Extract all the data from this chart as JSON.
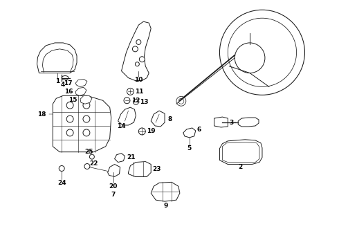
{
  "bg_color": "#ffffff",
  "line_color": "#1a1a1a",
  "text_color": "#000000",
  "fig_width": 4.9,
  "fig_height": 3.6,
  "dpi": 100,
  "lw": 0.7
}
